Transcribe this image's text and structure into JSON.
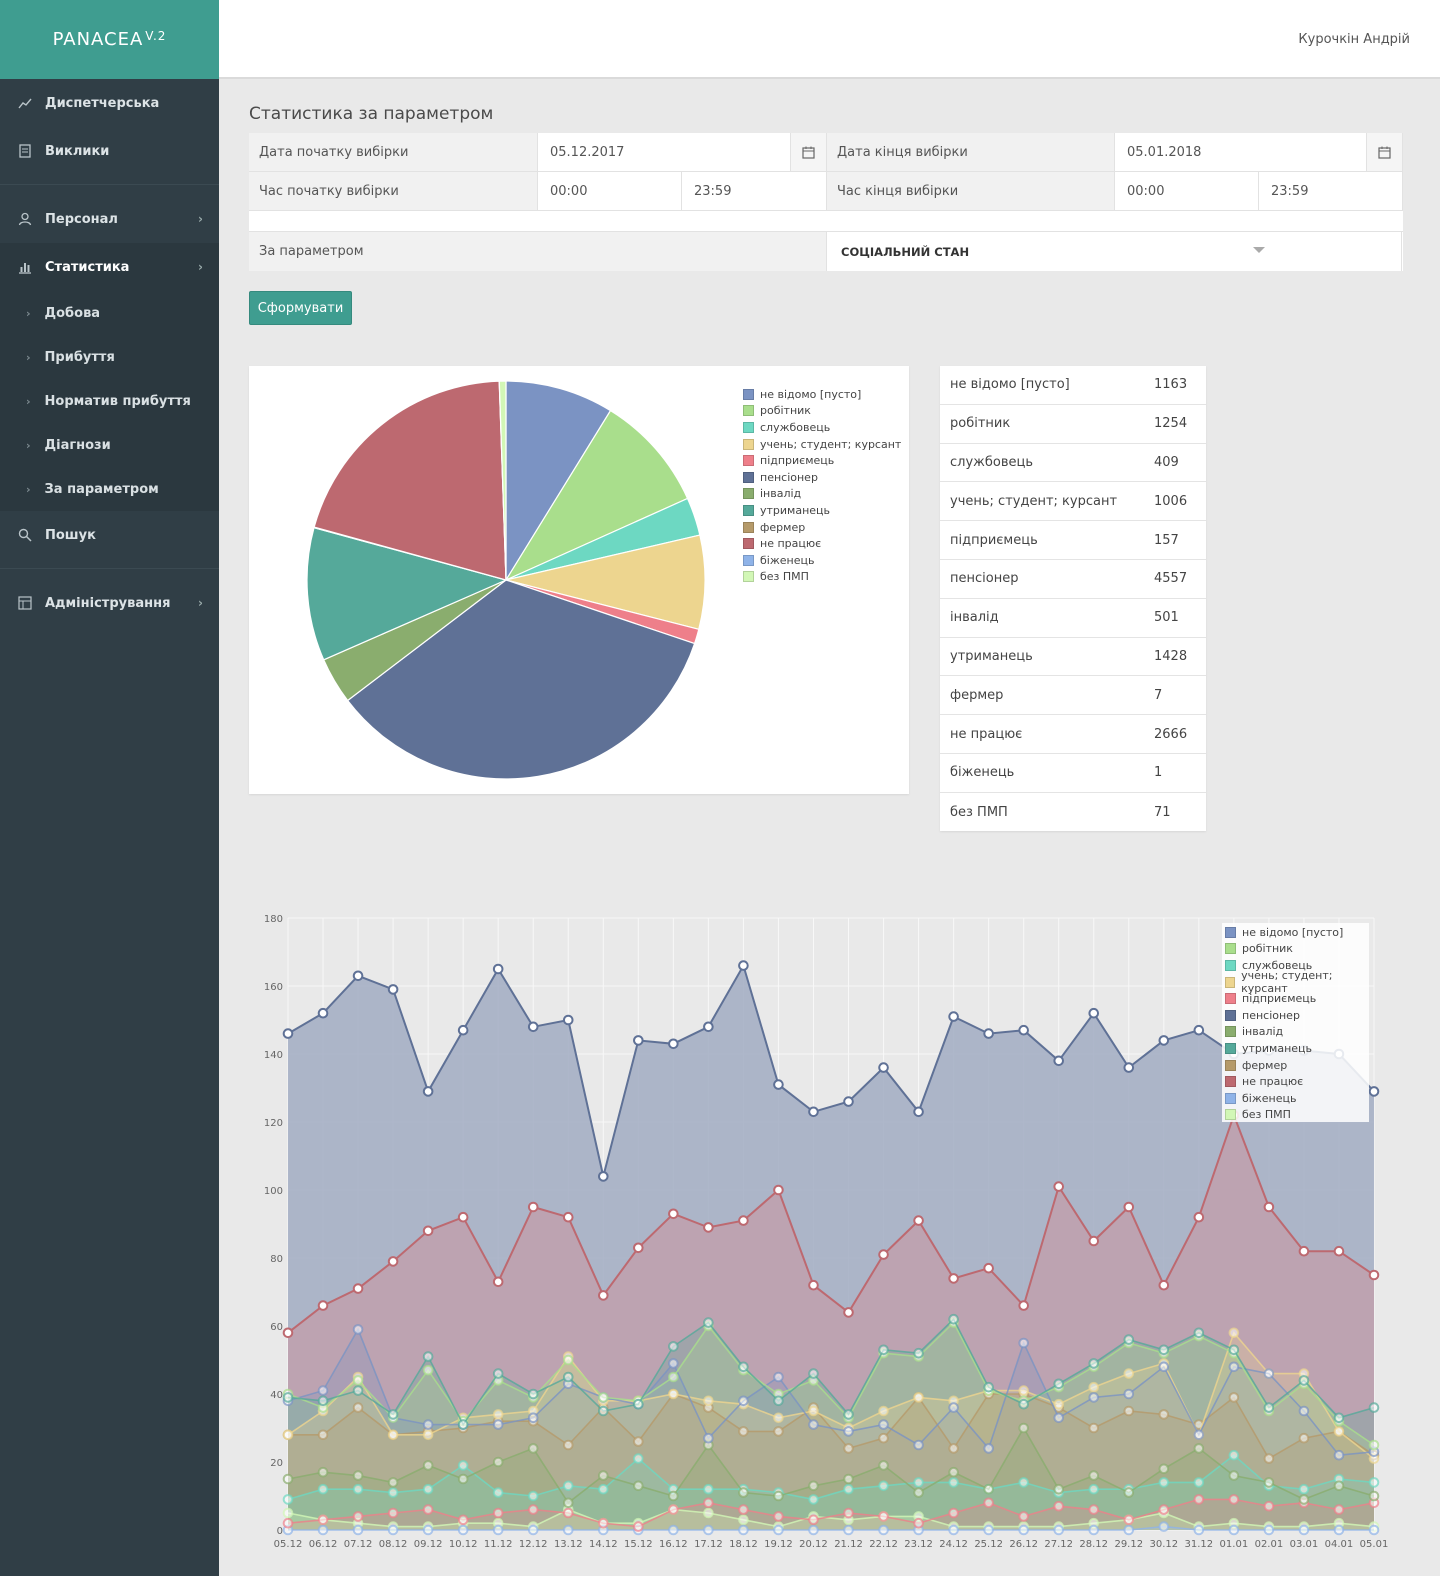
{
  "app": {
    "logo": "PANACEA",
    "logo_version": "V.2",
    "user": "Курочкін Андрій"
  },
  "sidebar": {
    "items": [
      {
        "label": "Диспетчерська",
        "icon": "trend-icon"
      },
      {
        "label": "Виклики",
        "icon": "document-icon"
      },
      {
        "label": "Персонал",
        "icon": "user-icon"
      },
      {
        "label": "Статистика",
        "icon": "bar-chart-icon"
      },
      {
        "label": "Пошук",
        "icon": "search-icon"
      },
      {
        "label": "Адміністрування",
        "icon": "grid-icon"
      }
    ],
    "sub_items": [
      "Добова",
      "Прибуття",
      "Норматив прибуття",
      "Діагнози",
      "За параметром"
    ]
  },
  "page": {
    "title": "Статистика за параметром"
  },
  "form": {
    "start_date_label": "Дата початку вибірки",
    "start_date": "05.12.2017",
    "end_date_label": "Дата кінця вибірки",
    "end_date": "05.01.2018",
    "start_time_label": "Час початку вибірки",
    "start_time_from": "00:00",
    "start_time_to": "23:59",
    "end_time_label": "Час кінця вибірки",
    "end_time_from": "00:00",
    "end_time_to": "23:59",
    "param_label": "За параметром",
    "param_value": "СОЦІАЛЬНИЙ СТАН",
    "submit": "Сформувати"
  },
  "chart_data": [
    {
      "type": "pie",
      "categories": [
        "не відомо [пусто]",
        "робітник",
        "службовець",
        "учень; студент; курсант",
        "підприємець",
        "пенсіонер",
        "інвалід",
        "утриманець",
        "фермер",
        "не працює",
        "біженець",
        "без ПМП"
      ],
      "values": [
        1163,
        1254,
        409,
        1006,
        157,
        4557,
        501,
        1428,
        7,
        2666,
        1,
        71
      ],
      "colors": [
        "#7b93c3",
        "#a9de8c",
        "#6dd8c2",
        "#edd58f",
        "#ee7f8a",
        "#5f7196",
        "#8aad6e",
        "#55a99a",
        "#b59a6a",
        "#bd6970",
        "#8fb3e8",
        "#d2f7b6"
      ]
    },
    {
      "type": "area",
      "x": [
        "05.12",
        "06.12",
        "07.12",
        "08.12",
        "09.12",
        "10.12",
        "11.12",
        "12.12",
        "13.12",
        "14.12",
        "15.12",
        "16.12",
        "17.12",
        "18.12",
        "19.12",
        "20.12",
        "21.12",
        "22.12",
        "23.12",
        "24.12",
        "25.12",
        "26.12",
        "27.12",
        "28.12",
        "29.12",
        "30.12",
        "31.12",
        "01.01",
        "02.01",
        "03.01",
        "04.01",
        "05.01"
      ],
      "ylim": [
        0,
        180
      ],
      "yticks": [
        0,
        20,
        40,
        60,
        80,
        100,
        120,
        140,
        160,
        180
      ],
      "series": [
        {
          "name": "пенсіонер",
          "color": "#5f7196",
          "fill": "#a1acc2",
          "values": [
            146,
            152,
            163,
            159,
            129,
            147,
            165,
            148,
            150,
            104,
            144,
            143,
            148,
            166,
            131,
            123,
            126,
            136,
            123,
            151,
            146,
            147,
            138,
            152,
            136,
            144,
            147,
            140,
            141,
            141,
            140,
            129
          ]
        },
        {
          "name": "не працює",
          "color": "#bd6970",
          "fill": "#c0a0ad",
          "values": [
            58,
            66,
            71,
            79,
            88,
            92,
            73,
            95,
            92,
            69,
            83,
            93,
            89,
            91,
            100,
            72,
            64,
            81,
            91,
            74,
            77,
            66,
            101,
            85,
            95,
            72,
            92,
            122,
            95,
            82,
            82,
            75
          ]
        },
        {
          "name": "утриманець",
          "color": "#55a99a",
          "values": [
            39,
            38,
            41,
            34,
            51,
            31,
            46,
            40,
            45,
            35,
            37,
            54,
            61,
            48,
            38,
            46,
            34,
            53,
            52,
            62,
            42,
            37,
            43,
            49,
            56,
            53,
            58,
            53,
            36,
            44,
            33,
            36
          ]
        },
        {
          "name": "робітник",
          "color": "#a9de8c",
          "values": [
            40,
            36,
            44,
            33,
            47,
            32,
            44,
            39,
            50,
            39,
            38,
            45,
            60,
            47,
            40,
            44,
            33,
            52,
            51,
            61,
            41,
            38,
            42,
            48,
            55,
            52,
            57,
            52,
            35,
            43,
            32,
            25
          ]
        },
        {
          "name": "не відомо [пусто]",
          "color": "#7b93c3",
          "values": [
            38,
            41,
            59,
            33,
            31,
            31,
            31,
            33,
            43,
            39,
            37,
            49,
            27,
            38,
            45,
            31,
            29,
            31,
            25,
            36,
            24,
            55,
            33,
            39,
            40,
            48,
            28,
            48,
            46,
            35,
            22,
            23
          ]
        },
        {
          "name": "учень; студент; курсант",
          "color": "#edd58f",
          "values": [
            28,
            35,
            45,
            28,
            28,
            33,
            34,
            35,
            51,
            38,
            38,
            40,
            38,
            37,
            33,
            35,
            30,
            35,
            39,
            38,
            41,
            41,
            37,
            42,
            46,
            49,
            28,
            58,
            46,
            46,
            29,
            21
          ]
        },
        {
          "name": "фермер",
          "color": "#b59a6a",
          "values": [
            28,
            28,
            36,
            28,
            29,
            30,
            32,
            32,
            25,
            36,
            26,
            40,
            36,
            29,
            29,
            36,
            24,
            27,
            39,
            24,
            40,
            40,
            36,
            30,
            35,
            34,
            31,
            39,
            21,
            27,
            29,
            22
          ]
        },
        {
          "name": "інвалід",
          "color": "#8aad6e",
          "values": [
            15,
            17,
            16,
            14,
            19,
            15,
            20,
            24,
            8,
            16,
            13,
            10,
            25,
            11,
            10,
            13,
            15,
            19,
            11,
            17,
            12,
            30,
            12,
            16,
            11,
            18,
            24,
            16,
            14,
            9,
            13,
            10
          ]
        },
        {
          "name": "службовець",
          "color": "#6dd8c2",
          "values": [
            9,
            12,
            12,
            11,
            12,
            19,
            11,
            10,
            13,
            12,
            21,
            12,
            12,
            12,
            11,
            9,
            12,
            13,
            14,
            14,
            12,
            14,
            11,
            12,
            12,
            14,
            14,
            22,
            13,
            12,
            15,
            14
          ]
        },
        {
          "name": "підприємець",
          "color": "#ee7f8a",
          "values": [
            2,
            3,
            4,
            5,
            6,
            3,
            5,
            6,
            5,
            2,
            1,
            6,
            8,
            6,
            4,
            3,
            5,
            4,
            2,
            5,
            8,
            4,
            7,
            6,
            3,
            6,
            9,
            9,
            7,
            8,
            6,
            8
          ]
        },
        {
          "name": "біженець",
          "color": "#8fb3e8",
          "values": [
            0,
            0,
            0,
            0,
            0,
            0,
            0,
            0,
            0,
            0,
            0,
            0,
            0,
            0,
            0,
            0,
            0,
            0,
            0,
            0,
            0,
            0,
            0,
            0,
            0,
            1,
            0,
            0,
            0,
            0,
            0,
            0
          ]
        },
        {
          "name": "без ПМП",
          "color": "#d2f7b6",
          "values": [
            5,
            3,
            2,
            1,
            1,
            2,
            2,
            1,
            6,
            2,
            2,
            6,
            5,
            3,
            1,
            4,
            3,
            4,
            4,
            1,
            1,
            1,
            1,
            2,
            3,
            5,
            1,
            2,
            1,
            1,
            2,
            1
          ]
        }
      ]
    }
  ],
  "legend_order": [
    "не відомо [пусто]",
    "робітник",
    "службовець",
    "учень; студент; курсант",
    "підприємець",
    "пенсіонер",
    "інвалід",
    "утриманець",
    "фермер",
    "не працює",
    "біженець",
    "без ПМП"
  ]
}
